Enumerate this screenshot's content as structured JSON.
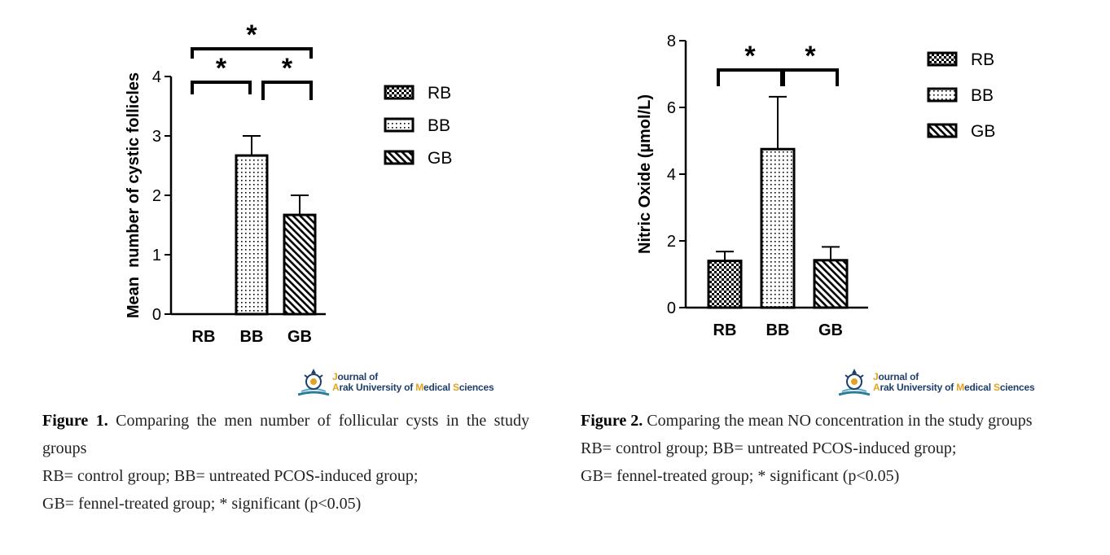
{
  "chart_data": [
    {
      "type": "bar",
      "categories": [
        "RB",
        "BB",
        "GB"
      ],
      "values": [
        0,
        2.67,
        1.67
      ],
      "errors": [
        0,
        0.33,
        0.33
      ],
      "ylabel": "Mean  number of cystic follicles",
      "ylim": [
        0,
        4
      ],
      "yticks": [
        "0",
        "1",
        "2",
        "3",
        "4"
      ],
      "legend": [
        "RB",
        "BB",
        "GB"
      ],
      "legend_position": "right",
      "significance_mark": "*",
      "significance": [
        [
          "RB",
          "BB"
        ],
        [
          "BB",
          "GB"
        ],
        [
          "RB",
          "GB"
        ]
      ],
      "patterns": [
        "checker",
        "dots",
        "diagonal"
      ]
    },
    {
      "type": "bar",
      "categories": [
        "RB",
        "BB",
        "GB"
      ],
      "values": [
        1.4,
        4.75,
        1.42
      ],
      "errors": [
        0.28,
        1.57,
        0.4
      ],
      "ylabel": "Nitric Oxide (µmol/L)",
      "ylim": [
        0,
        8
      ],
      "yticks": [
        "0",
        "2",
        "4",
        "6",
        "8"
      ],
      "legend": [
        "RB",
        "BB",
        "GB"
      ],
      "legend_position": "right",
      "significance_mark": "*",
      "significance": [
        [
          "RB",
          "BB"
        ],
        [
          "BB",
          "GB"
        ]
      ],
      "patterns": [
        "checker",
        "dots",
        "diagonal"
      ]
    }
  ],
  "logo": {
    "line1_first": "J",
    "line1_rest": "ournal of",
    "line2_a1": "A",
    "line2_a2": "rak University of ",
    "line2_m1": "M",
    "line2_m2": "edical ",
    "line2_s1": "S",
    "line2_s2": "ciences"
  },
  "figure1": {
    "label": "Figure 1.",
    "title": " Comparing the men number of follicular cysts in the study groups",
    "line2": "RB= control group; BB= untreated PCOS-induced group;",
    "line3": "GB= fennel-treated group; * significant (p<0.05)"
  },
  "figure2": {
    "label": "Figure 2.",
    "title": " Comparing the mean NO concentration in the study groups",
    "line2": "RB= control group; BB= untreated PCOS-induced group;",
    "line3": "GB= fennel-treated group; * significant (p<0.05)"
  }
}
